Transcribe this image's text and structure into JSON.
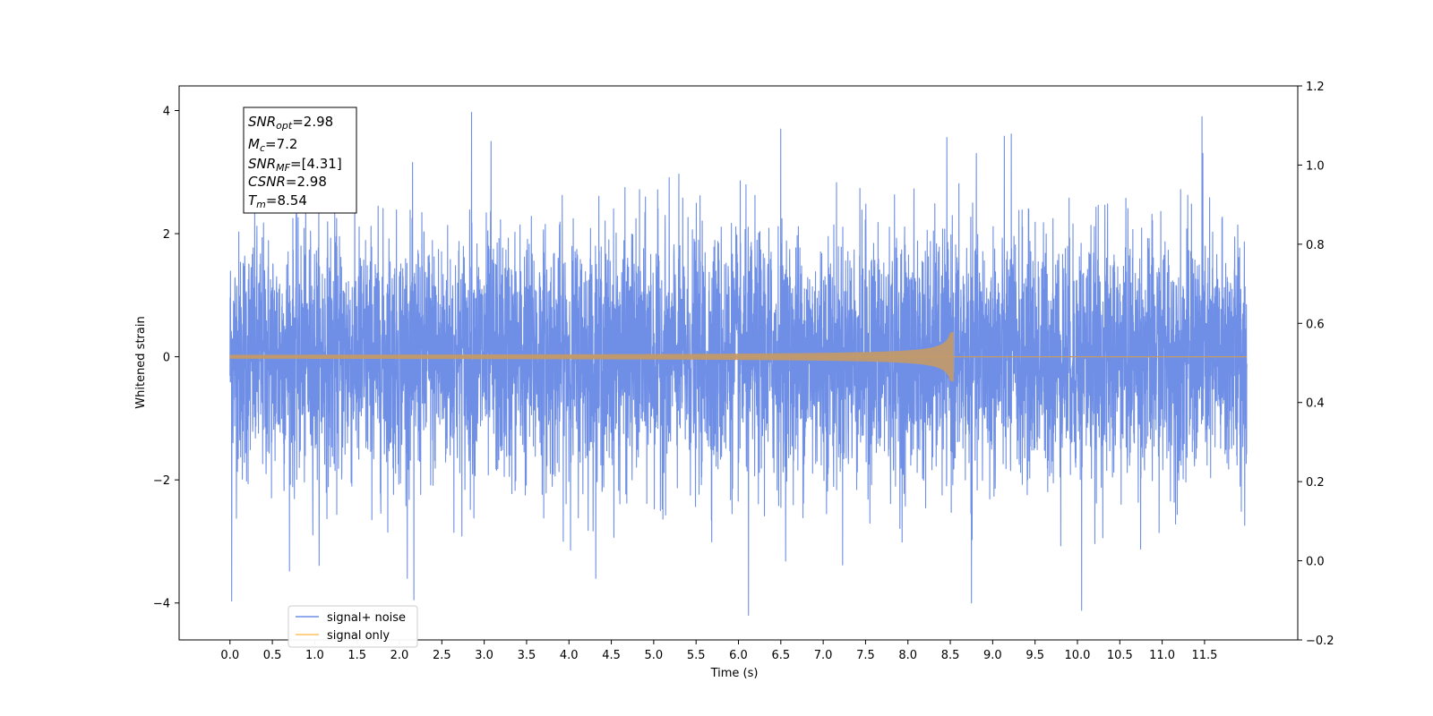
{
  "chart_data": {
    "type": "line",
    "title": "",
    "xlabel": "Time (s)",
    "ylabel": "Whitened strain",
    "xlim": [
      -0.6,
      12.6
    ],
    "ylim": [
      -4.6,
      4.4
    ],
    "y2lim": [
      -0.2,
      1.2
    ],
    "xticks": [
      "0.0",
      "0.5",
      "1.0",
      "1.5",
      "2.0",
      "2.5",
      "3.0",
      "3.5",
      "4.0",
      "4.5",
      "5.0",
      "5.5",
      "6.0",
      "6.5",
      "7.0",
      "7.5",
      "8.0",
      "8.5",
      "9.0",
      "9.5",
      "10.0",
      "10.5",
      "11.0",
      "11.5"
    ],
    "yticks": [
      "4",
      "2",
      "0",
      "−2",
      "−4"
    ],
    "y2ticks": [
      "1.2",
      "1.0",
      "0.8",
      "0.6",
      "0.4",
      "0.2",
      "0.0",
      "−0.2"
    ],
    "legend_position": "lower-left",
    "series": [
      {
        "name": "signal+ noise",
        "color": "#6f8fe6",
        "x_range": [
          0.0,
          12.0
        ],
        "description_values": {
          "typical_envelope": [
            -2.5,
            2.5
          ],
          "max_peak": 3.97,
          "min_peak": -4.2
        },
        "notable_peaks": [
          [
            2.85,
            3.97
          ],
          [
            11.47,
            3.9
          ],
          [
            0.02,
            -3.97
          ],
          [
            2.17,
            -3.95
          ],
          [
            6.12,
            -4.2
          ],
          [
            10.05,
            -4.12
          ],
          [
            8.75,
            -4.0
          ],
          [
            3.08,
            3.5
          ],
          [
            6.5,
            3.7
          ],
          [
            9.22,
            3.62
          ]
        ]
      },
      {
        "name": "signal only",
        "color": "#ffc060",
        "x_range": [
          0.0,
          12.0
        ],
        "merger_time": 8.54,
        "peak_amplitude": 0.4
      }
    ],
    "annotation": {
      "snr_opt_label": "SNR",
      "snr_opt_sub": "opt",
      "snr_opt_value": "=2.98",
      "mc_label": "M",
      "mc_sub": "c",
      "mc_value": "=7.2",
      "snr_mf_label": "SNR",
      "snr_mf_sub": "MF",
      "snr_mf_value": "=[4.31]",
      "csnr_label": "CSNR",
      "csnr_value": "=2.98",
      "tm_label": "T",
      "tm_sub": "m",
      "tm_value": "=8.54"
    }
  }
}
